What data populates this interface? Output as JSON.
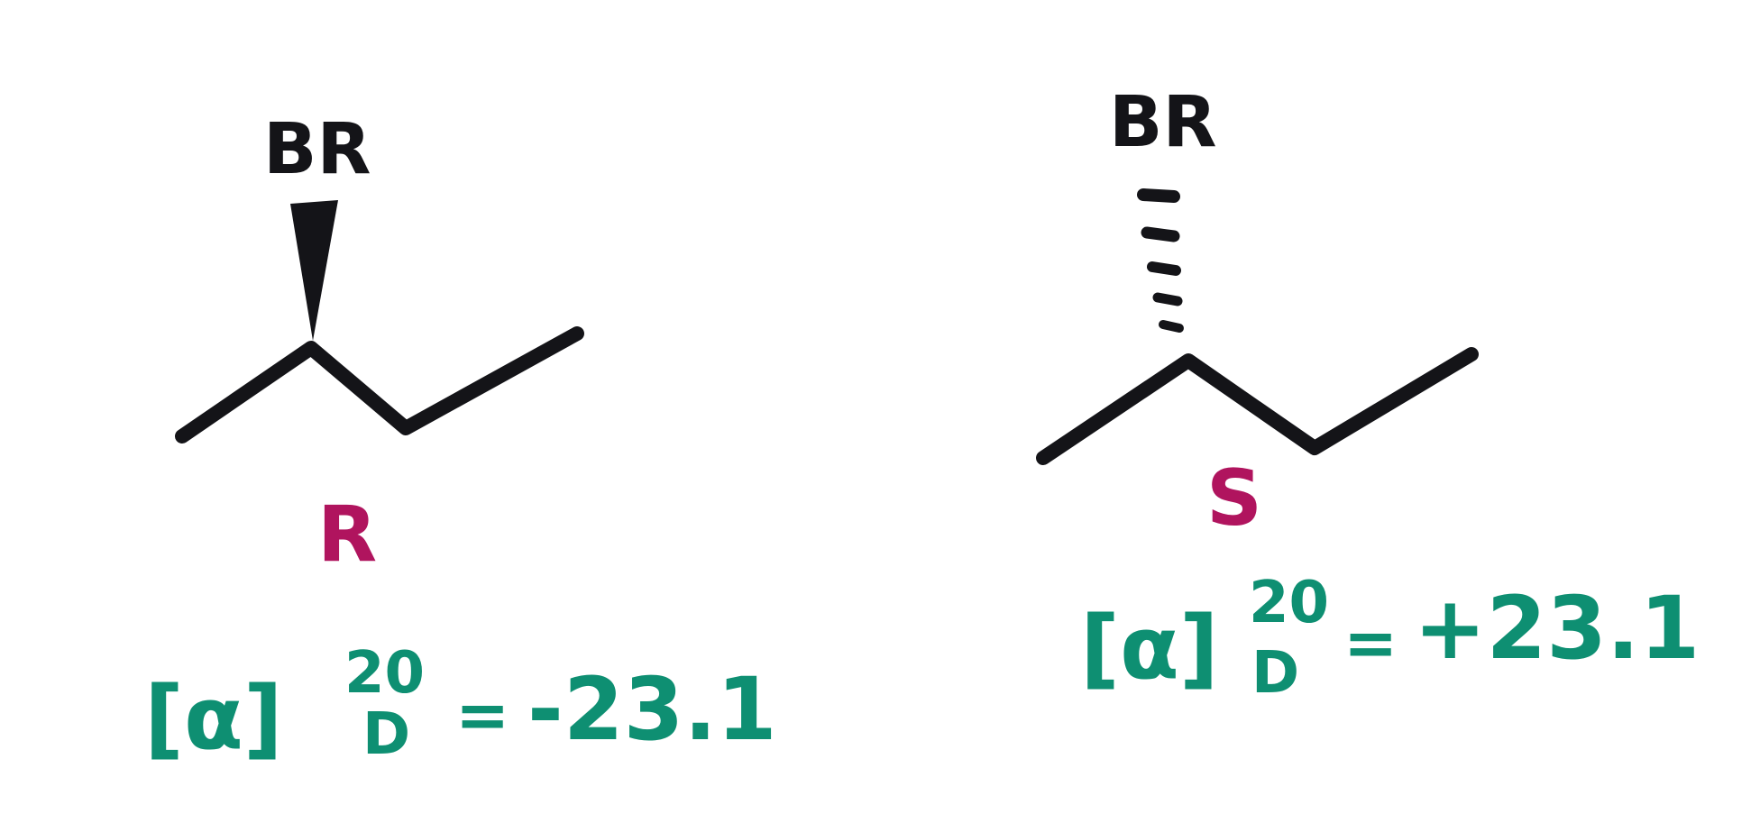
{
  "molecules": [
    {
      "substituent_label": "BR",
      "bond_style": "wedge",
      "configuration": "R",
      "rotation": {
        "symbol": "[α]",
        "temperature": "20",
        "wavelength": "D",
        "equals": "=",
        "value": "-23.1"
      }
    },
    {
      "substituent_label": "BR",
      "bond_style": "hash",
      "configuration": "S",
      "rotation": {
        "symbol": "[α]",
        "temperature": "20",
        "wavelength": "D",
        "equals": "=",
        "value": "+23.1"
      }
    }
  ],
  "colors": {
    "ink": "#141418",
    "configuration": "#b0145e",
    "rotation": "#0e8f72"
  }
}
